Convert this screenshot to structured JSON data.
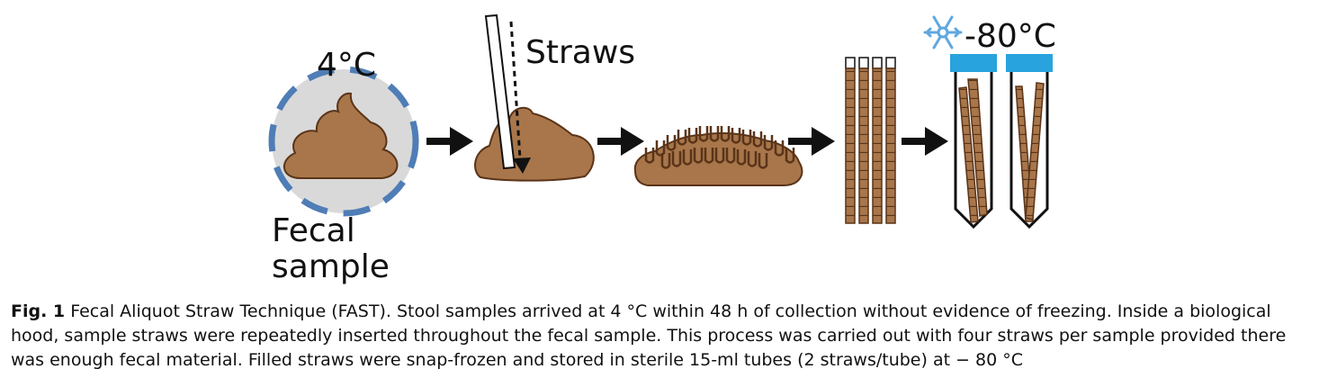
{
  "figure": {
    "temp_label": "4°C",
    "straws_label": "Straws",
    "sample_label_line1": "Fecal",
    "sample_label_line2": "sample",
    "freezer_label": "-80°C",
    "colors": {
      "feces": "#a8764a",
      "feces_outline": "#5a3419",
      "circle_fill": "#d9d9d9",
      "circle_dash": "#4f7db6",
      "cap": "#29a3dd",
      "snowflake": "#5fa8e0"
    }
  },
  "caption": {
    "fig_number": "Fig. 1",
    "text": " Fecal Aliquot Straw Technique (FAST). Stool samples arrived at 4 °C within 48 h of collection without evidence of freezing. Inside a biological hood, sample straws were repeatedly inserted throughout the fecal sample. This process was carried out with four straws per sample provided there was enough fecal material. Filled straws were snap-frozen and stored in sterile 15-ml tubes (2 straws/tube) at − 80 °C"
  }
}
